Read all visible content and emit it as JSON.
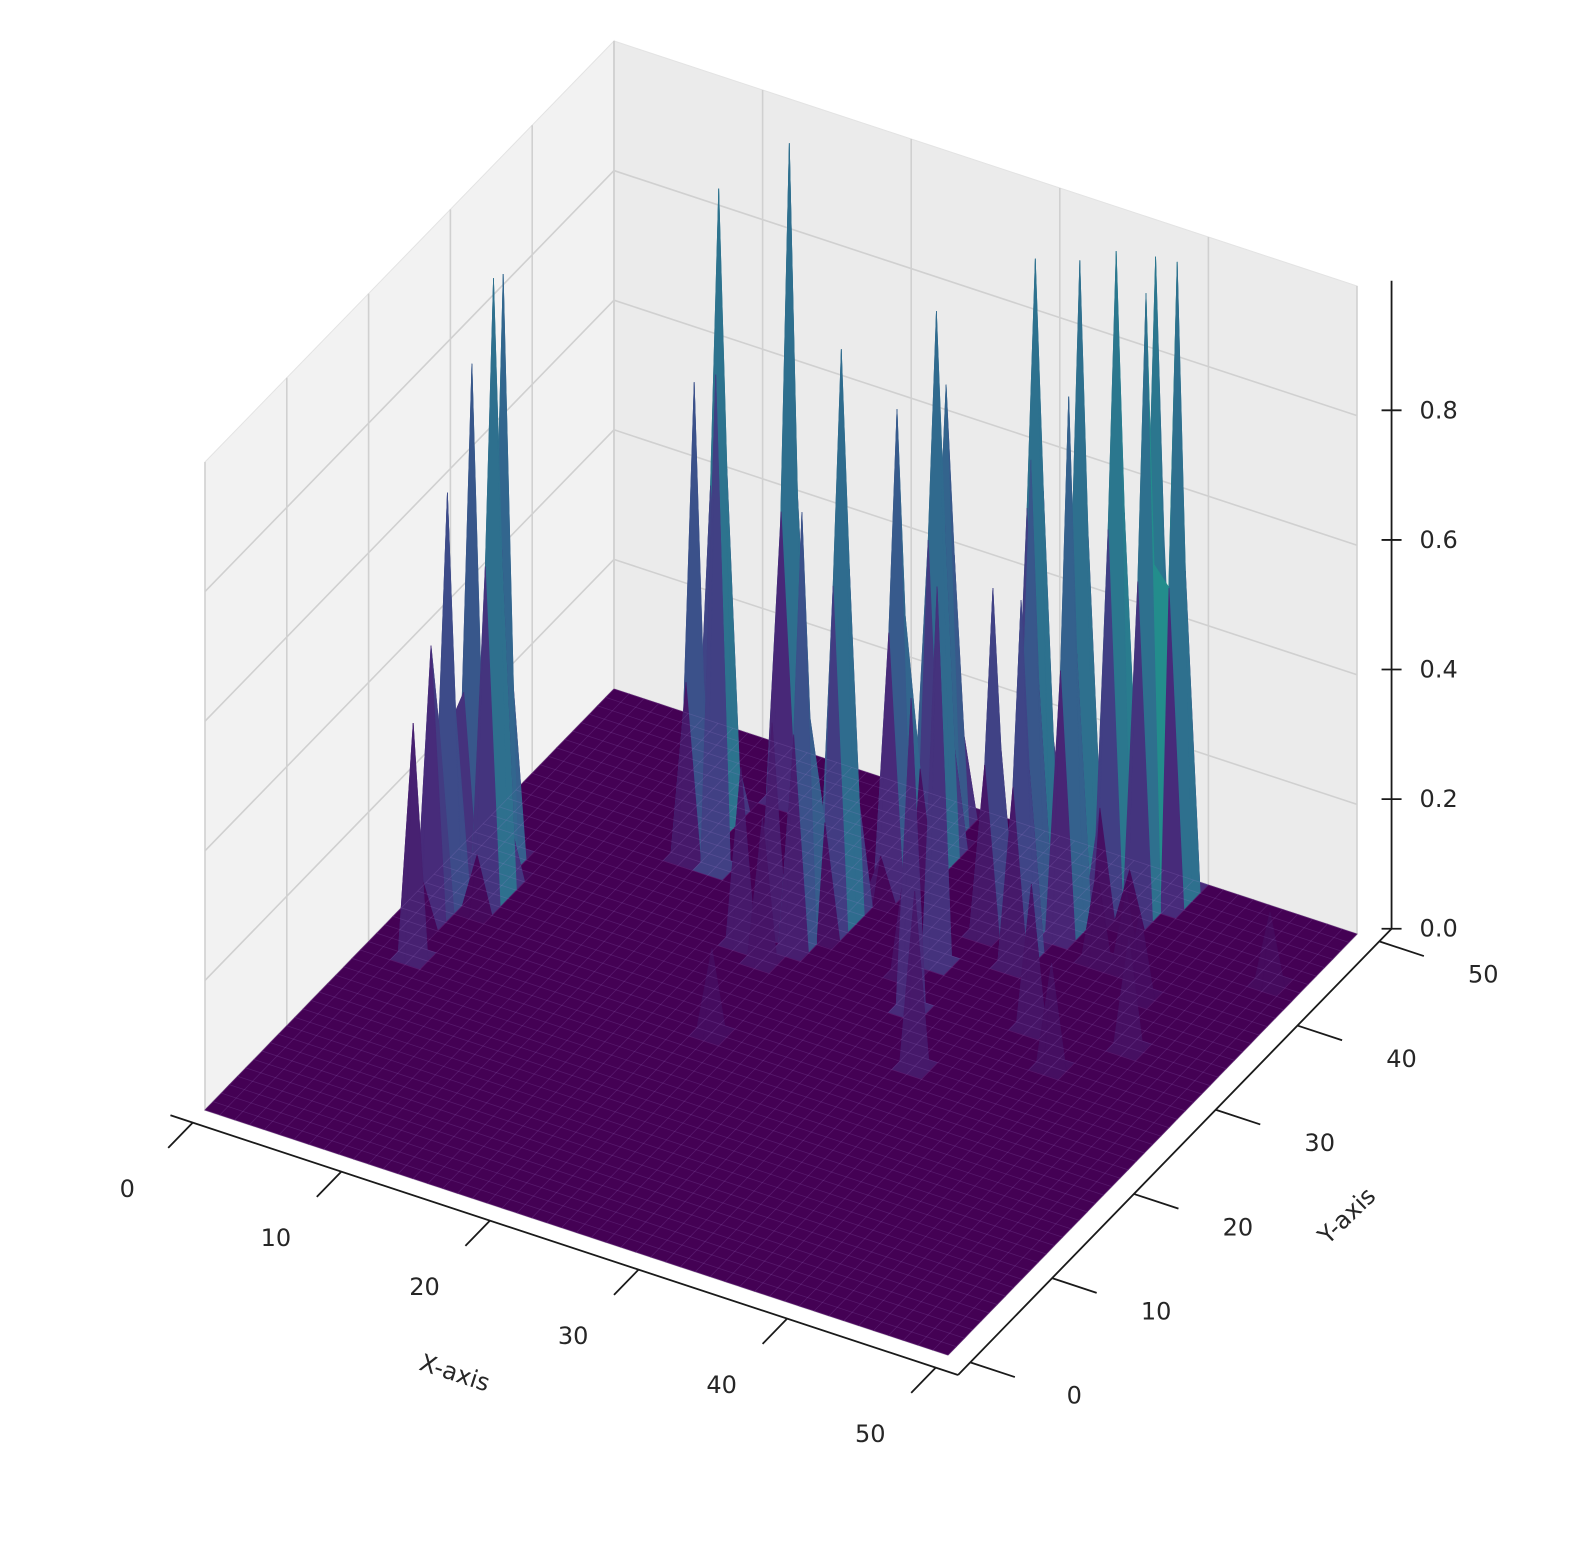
{
  "chart_data": {
    "type": "surface",
    "title": "",
    "xlabel": "X-axis",
    "ylabel": "Y-axis",
    "zlabel": "",
    "colormap": "viridis",
    "xlim": [
      0,
      50
    ],
    "ylim": [
      0,
      50
    ],
    "zlim": [
      0,
      1
    ],
    "xticks": [
      "0",
      "10",
      "20",
      "30",
      "40",
      "50"
    ],
    "yticks": [
      "0",
      "10",
      "20",
      "30",
      "40",
      "50"
    ],
    "zticks": [
      "0.0",
      "0.2",
      "0.4",
      "0.6",
      "0.8"
    ],
    "grid": true,
    "baseline_z": 0,
    "peaks": [
      {
        "x": 2,
        "y": 29,
        "z": 0.79,
        "wx": 0.6,
        "wy": 1.6
      },
      {
        "x": 2,
        "y": 26,
        "z": 0.63,
        "wx": 0.6,
        "wy": 1.8
      },
      {
        "x": 2,
        "y": 24,
        "z": 0.42,
        "wx": 0.5,
        "wy": 1.2
      },
      {
        "x": 3,
        "y": 31,
        "z": 0.91,
        "wx": 0.5,
        "wy": 1.5
      },
      {
        "x": 3,
        "y": 20,
        "z": 0.36,
        "wx": 0.7,
        "wy": 0.9
      },
      {
        "x": 4,
        "y": 28,
        "z": 0.95,
        "wx": 0.7,
        "wy": 2.2
      },
      {
        "x": 12,
        "y": 41,
        "z": 0.98,
        "wx": 0.5,
        "wy": 2.2
      },
      {
        "x": 12,
        "y": 38,
        "z": 0.72,
        "wx": 0.5,
        "wy": 1.6
      },
      {
        "x": 14,
        "y": 46,
        "z": 1.0,
        "wx": 0.5,
        "wy": 1.8
      },
      {
        "x": 14,
        "y": 37,
        "z": 0.76,
        "wx": 0.5,
        "wy": 0.9
      },
      {
        "x": 24,
        "y": 47,
        "z": 0.69,
        "wx": 0.7,
        "wy": 2.5
      },
      {
        "x": 24,
        "y": 41,
        "z": 0.73,
        "wx": 0.7,
        "wy": 2.2
      },
      {
        "x": 25,
        "y": 44,
        "z": 0.85,
        "wx": 0.7,
        "wy": 2.5
      },
      {
        "x": 23,
        "y": 36,
        "z": 0.88,
        "wx": 0.7,
        "wy": 2.5
      },
      {
        "x": 22,
        "y": 33,
        "z": 0.66,
        "wx": 0.7,
        "wy": 2.0
      },
      {
        "x": 19,
        "y": 31,
        "z": 0.27,
        "wx": 0.6,
        "wy": 0.8
      },
      {
        "x": 20,
        "y": 33,
        "z": 0.32,
        "wx": 0.6,
        "wy": 0.8
      },
      {
        "x": 21,
        "y": 30,
        "z": 0.22,
        "wx": 0.6,
        "wy": 0.8
      },
      {
        "x": 22,
        "y": 22,
        "z": 0.13,
        "wx": 0.8,
        "wy": 0.8
      },
      {
        "x": 30,
        "y": 47,
        "z": 0.93,
        "wx": 0.6,
        "wy": 2.5
      },
      {
        "x": 31,
        "y": 40,
        "z": 0.52,
        "wx": 0.6,
        "wy": 2.0
      },
      {
        "x": 33,
        "y": 47,
        "z": 0.95,
        "wx": 0.6,
        "wy": 2.2
      },
      {
        "x": 35,
        "y": 42,
        "z": 0.82,
        "wx": 0.6,
        "wy": 2.0
      },
      {
        "x": 36,
        "y": 46,
        "z": 1.0,
        "wx": 0.6,
        "wy": 2.4
      },
      {
        "x": 37,
        "y": 49,
        "z": 0.96,
        "wx": 0.6,
        "wy": 2.2
      },
      {
        "x": 38,
        "y": 46,
        "z": 0.95,
        "wx": 0.6,
        "wy": 2.2
      },
      {
        "x": 39,
        "y": 48,
        "z": 0.98,
        "wx": 0.6,
        "wy": 2.0
      },
      {
        "x": 33,
        "y": 41,
        "z": 0.72,
        "wx": 0.6,
        "wy": 2.0
      },
      {
        "x": 34,
        "y": 38,
        "z": 0.55,
        "wx": 0.6,
        "wy": 2.0
      },
      {
        "x": 29,
        "y": 33,
        "z": 0.18,
        "wx": 0.6,
        "wy": 0.8
      },
      {
        "x": 30,
        "y": 35,
        "z": 0.58,
        "wx": 0.5,
        "wy": 0.9
      },
      {
        "x": 31,
        "y": 30,
        "z": 0.48,
        "wx": 0.5,
        "wy": 0.9
      },
      {
        "x": 34,
        "y": 25,
        "z": 0.27,
        "wx": 0.6,
        "wy": 0.8
      },
      {
        "x": 38,
        "y": 32,
        "z": 0.22,
        "wx": 0.6,
        "wy": 0.8
      },
      {
        "x": 38,
        "y": 40,
        "z": 0.14,
        "wx": 0.8,
        "wy": 0.8
      },
      {
        "x": 40,
        "y": 40,
        "z": 0.12,
        "wx": 0.8,
        "wy": 0.8
      },
      {
        "x": 42,
        "y": 38,
        "z": 0.13,
        "wx": 0.8,
        "wy": 0.8
      },
      {
        "x": 41,
        "y": 29,
        "z": 0.16,
        "wx": 0.7,
        "wy": 0.8
      },
      {
        "x": 44,
        "y": 33,
        "z": 0.17,
        "wx": 0.7,
        "wy": 0.8
      },
      {
        "x": 48,
        "y": 43,
        "z": 0.11,
        "wx": 0.8,
        "wy": 0.8
      }
    ]
  }
}
